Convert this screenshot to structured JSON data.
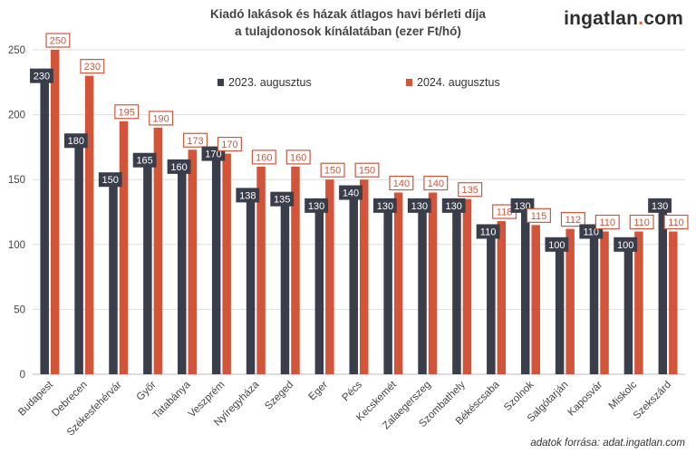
{
  "title_line1": "Kiadó lakások és házak átlagos havi bérleti díja",
  "title_line2": "a tulajdonosok kínálatában (ezer Ft/hó)",
  "brand_main": "ingatlan",
  "brand_dot": ".",
  "brand_tld": "com",
  "source_note": "adatok forrása: adat.ingatlan.com",
  "colors": {
    "series_2023": "#3a3d4a",
    "series_2024": "#d2553a",
    "grid": "#dddddd",
    "axis_text": "#444444"
  },
  "chart_data": {
    "type": "bar",
    "title": "Kiadó lakások és házak átlagos havi bérleti díja a tulajdonosok kínálatában (ezer Ft/hó)",
    "categories": [
      "Budapest",
      "Debrecen",
      "Székesfehérvár",
      "Győr",
      "Tatabánya",
      "Veszprém",
      "Nyíregyháza",
      "Szeged",
      "Eger",
      "Pécs",
      "Kecskemét",
      "Zalaegerszeg",
      "Szombathely",
      "Békéscsaba",
      "Szolnok",
      "Salgótarján",
      "Kaposvár",
      "Miskolc",
      "Szekszárd"
    ],
    "series": [
      {
        "name": "2023. augusztus",
        "values": [
          230,
          180,
          150,
          165,
          160,
          170,
          138,
          135,
          130,
          140,
          130,
          130,
          130,
          110,
          130,
          100,
          110,
          100,
          130
        ]
      },
      {
        "name": "2024. augusztus",
        "values": [
          250,
          230,
          195,
          190,
          173,
          170,
          160,
          160,
          150,
          150,
          140,
          140,
          135,
          118,
          115,
          112,
          110,
          110,
          110
        ]
      }
    ],
    "ylim": [
      0,
      250
    ],
    "yticks": [
      0,
      50,
      100,
      150,
      200,
      250
    ],
    "grid": true,
    "legend_position": "top"
  }
}
